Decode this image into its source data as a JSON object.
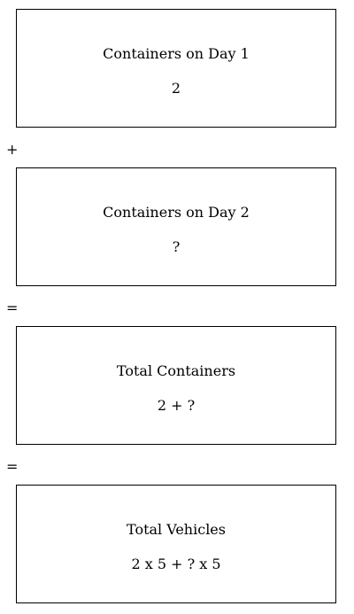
{
  "boxes": [
    {
      "label": "Containers on Day 1",
      "value": "2"
    },
    {
      "label": "Containers on Day 2",
      "value": "?"
    },
    {
      "label": "Total Containers",
      "value": "2 + ?"
    },
    {
      "label": "Total Vehicles",
      "value": "2 x 5 + ? x 5"
    }
  ],
  "operators": [
    "+",
    "=",
    "="
  ]
}
